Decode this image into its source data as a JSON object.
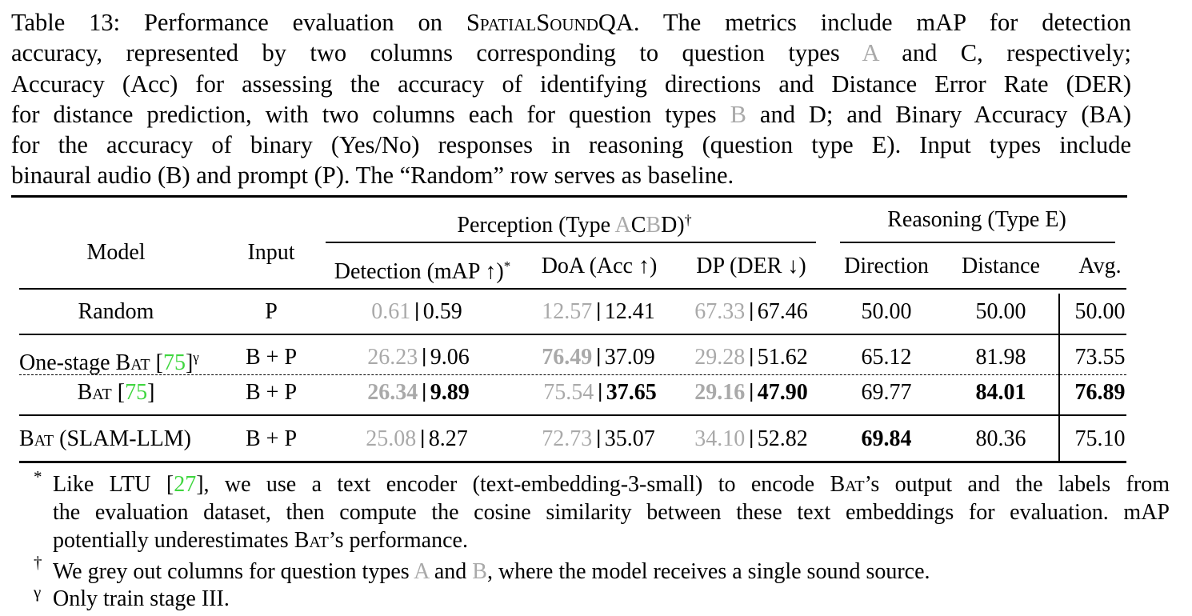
{
  "caption": {
    "l1a": "Table 13: Performance evaluation on ",
    "l1sc": "SpatialSound",
    "l1b": "QA. The metrics include mAP for detection",
    "l2a": "accuracy, represented by two columns corresponding to question types ",
    "l2A": "A",
    "l2b": " and C, respectively;",
    "l3": "Accuracy (Acc) for assessing the accuracy of identifying directions and Distance Error Rate (DER)",
    "l4a": "for distance prediction, with two columns each for question types ",
    "l4B": "B",
    "l4b": " and D; and Binary Accuracy (BA)",
    "l5": "for the accuracy of binary (Yes/No) responses in reasoning (question type E). Input types include",
    "l6": "binaural audio (B) and prompt (P). The “Random” row serves as baseline."
  },
  "header": {
    "perception_a": "Perception (Type ",
    "perception_A": "A",
    "perception_C": "C",
    "perception_B": "B",
    "perception_D": "D)",
    "perception_dag": "†",
    "reasoning": "Reasoning (Type E)",
    "model": "Model",
    "input": "Input",
    "detection": "Detection (mAP ↑)",
    "detection_star": "*",
    "doa": "DoA (Acc ↑)",
    "dp": "DP (DER ↓)",
    "direction": "Direction",
    "distance": "Distance",
    "avg": "Avg."
  },
  "rows": [
    {
      "model": "Random",
      "input": "P",
      "det_grey": "0.61",
      "det": "0.59",
      "doa_grey": "12.57",
      "doa": "12.41",
      "dp_grey": "67.33",
      "dp": "67.46",
      "direction": "50.00",
      "distance": "50.00",
      "avg": "50.00"
    },
    {
      "model_a": "One-stage ",
      "model_sc": "Bat",
      "model_b": " [",
      "model_ref": "75",
      "model_c": "]",
      "model_sup": "γ",
      "input": "B + P",
      "det_grey": "26.23",
      "det": "9.06",
      "doa_grey": "76.49",
      "doa": "37.09",
      "dp_grey": "29.28",
      "dp": "51.62",
      "direction": "65.12",
      "distance": "81.98",
      "avg": "73.55"
    },
    {
      "model_sc": "Bat",
      "model_b": " [",
      "model_ref": "75",
      "model_c": "]",
      "input": "B + P",
      "det_grey": "26.34",
      "det": "9.89",
      "doa_grey": "75.54",
      "doa": "37.65",
      "dp_grey": "29.16",
      "dp": "47.90",
      "direction": "69.77",
      "distance": "84.01",
      "avg": "76.89"
    },
    {
      "model_sc": "Bat",
      "model_b": " (SLAM-LLM)",
      "input": "B + P",
      "det_grey": "25.08",
      "det": "8.27",
      "doa_grey": "72.73",
      "doa": "35.07",
      "dp_grey": "34.10",
      "dp": "52.82",
      "direction": "69.84",
      "distance": "80.36",
      "avg": "75.10"
    }
  ],
  "footnotes": {
    "star_mark": "*",
    "star_l1a": "Like LTU [",
    "star_ref": "27",
    "star_l1b": "], we use a text encoder (text-embedding-3-small) to encode ",
    "star_sc": "Bat",
    "star_l1c": "’s output and the labels from",
    "star_l2": "the evaluation dataset, then compute the cosine similarity between these text embeddings for evaluation. mAP",
    "star_l3a": "potentially underestimates ",
    "star_l3sc": "Bat",
    "star_l3b": "’s performance.",
    "dag_mark": "†",
    "dag_a": "We grey out columns for question types ",
    "dag_A": "A",
    "dag_b": " and ",
    "dag_B": "B",
    "dag_c": ", where the model receives a single sound source.",
    "gamma_mark": "γ",
    "gamma_text": "Only train stage III."
  }
}
